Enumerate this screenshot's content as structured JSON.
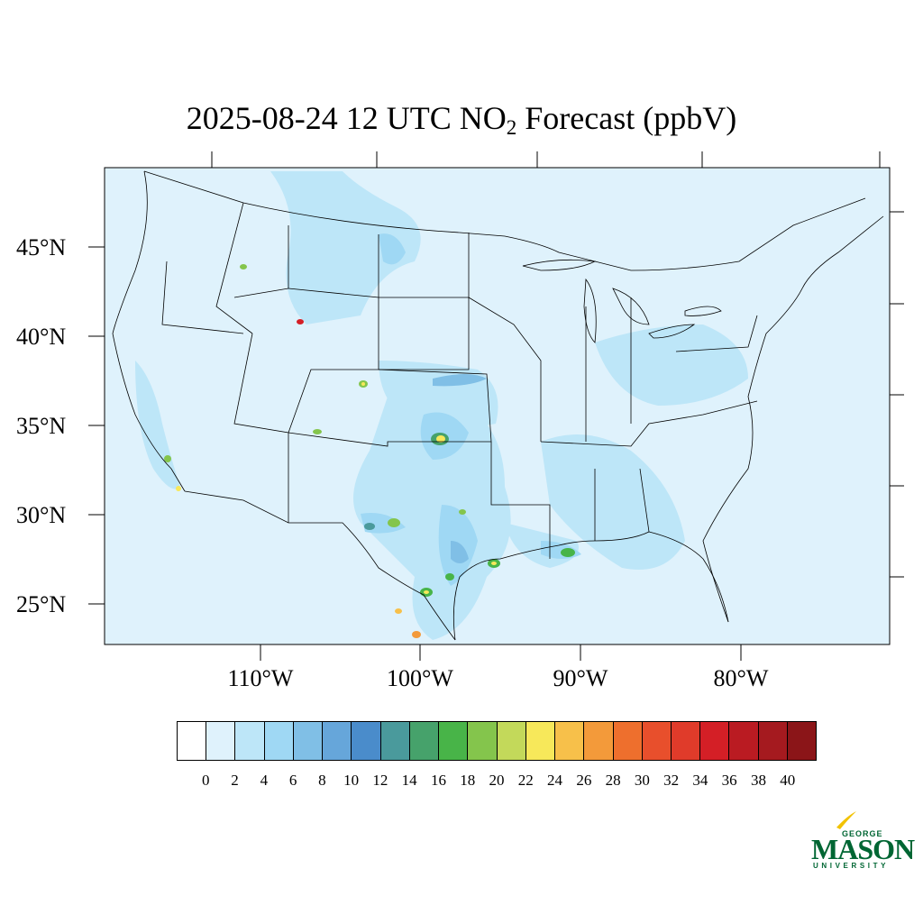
{
  "title": {
    "prefix": "2025-08-24 12 UTC NO",
    "subscript": "2",
    "suffix": " Forecast (ppbV)"
  },
  "lat_labels": [
    "45°N",
    "40°N",
    "35°N",
    "30°N",
    "25°N"
  ],
  "lon_labels": [
    "110°W",
    "100°W",
    "90°W",
    "80°W"
  ],
  "colorbar": {
    "ticks": [
      "0",
      "2",
      "4",
      "6",
      "8",
      "10",
      "12",
      "14",
      "16",
      "18",
      "20",
      "22",
      "24",
      "26",
      "28",
      "30",
      "32",
      "34",
      "36",
      "38",
      "40"
    ],
    "colors": [
      "#ffffff",
      "#dff2fc",
      "#bde6f8",
      "#9fd8f4",
      "#80bfe6",
      "#66a6da",
      "#4a8ccb",
      "#4a9a9c",
      "#46a26b",
      "#48b448",
      "#84c54c",
      "#c3d95a",
      "#f7e85a",
      "#f7c04a",
      "#f39a3a",
      "#ee6f2d",
      "#e84f2c",
      "#e03b2a",
      "#d41f26",
      "#ba1b22",
      "#a51a1f",
      "#8b1518"
    ]
  },
  "map": {
    "ocean_color": "#dff2fc",
    "low_color": "#bde6f8",
    "mid_color": "#9fd8f4"
  },
  "logo": {
    "george": "GEORGE",
    "mason": "MASON",
    "university": "UNIVERSITY"
  }
}
